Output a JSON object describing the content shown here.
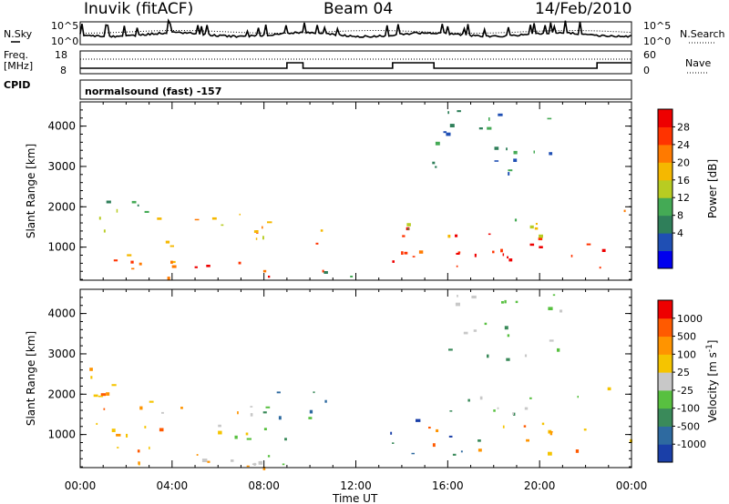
{
  "header": {
    "station": "Inuvik (fitACF)",
    "beam": "Beam 04",
    "date": "14/Feb/2010"
  },
  "status_panels": {
    "nsky_label": "N.Sky",
    "nsearch_label": "N.Search",
    "noise_ticks": [
      "10^5",
      "10^0"
    ],
    "freq_label_1": "Freq.",
    "freq_label_2": "[MHz]",
    "freq_ticks": [
      "18",
      "8"
    ],
    "nave_label": "Nave",
    "nave_ticks": [
      "60",
      "0"
    ],
    "cpid_label": "CPID",
    "cpid_text": "normalsound (fast) -157"
  },
  "chart_data": [
    {
      "type": "heatmap",
      "name": "power",
      "ylabel": "Slant Range [km]",
      "yticks": [
        "4000",
        "3000",
        "2000",
        "1000"
      ],
      "ylim": [
        180,
        4600
      ],
      "xlim": [
        0,
        24
      ],
      "colorbar_label": "Power [dB]",
      "colorbar_ticks": [
        "28",
        "24",
        "20",
        "16",
        "12",
        "8",
        "4"
      ],
      "colorbar_colors": [
        "#0000ee",
        "#1f4fb4",
        "#2f7f5a",
        "#44aa55",
        "#b8cc22",
        "#f5b800",
        "#ff7a00",
        "#ff3300",
        "#ee0000"
      ],
      "regions": [
        {
          "x0": 0.0,
          "x1": 4.0,
          "y0": 300,
          "y1": 1200,
          "v": 6
        },
        {
          "x0": 0.2,
          "x1": 3.5,
          "y0": 1400,
          "y1": 2400,
          "v": 3
        },
        {
          "x0": 2.5,
          "x1": 8.5,
          "y0": 250,
          "y1": 700,
          "v": 7
        },
        {
          "x0": 3.0,
          "x1": 8.5,
          "y0": 1100,
          "y1": 1900,
          "v": 5
        },
        {
          "x0": 7.5,
          "x1": 10.5,
          "y0": 850,
          "y1": 1650,
          "v": 6
        },
        {
          "x0": 8.0,
          "x1": 11.0,
          "y0": 200,
          "y1": 450,
          "v": 7
        },
        {
          "x0": 10.5,
          "x1": 13.5,
          "y0": 250,
          "y1": 550,
          "v": 2
        },
        {
          "x0": 13.2,
          "x1": 18.0,
          "y0": 500,
          "y1": 1500,
          "v": 7
        },
        {
          "x0": 16.0,
          "x1": 24.0,
          "y0": 450,
          "y1": 1300,
          "v": 8
        },
        {
          "x0": 14.0,
          "x1": 20.0,
          "y0": 1300,
          "y1": 1900,
          "v": 4
        },
        {
          "x0": 22.8,
          "x1": 23.9,
          "y0": 1900,
          "y1": 2500,
          "v": 6
        },
        {
          "x0": 15.0,
          "x1": 21.0,
          "y0": 2800,
          "y1": 4500,
          "v": 2
        }
      ]
    },
    {
      "type": "heatmap",
      "name": "velocity",
      "ylabel": "Slant Range [km]",
      "yticks": [
        "4000",
        "3000",
        "2000",
        "1000"
      ],
      "ylim": [
        180,
        4600
      ],
      "xlim": [
        0,
        24
      ],
      "xticks": [
        "00:00",
        "04:00",
        "08:00",
        "12:00",
        "16:00",
        "20:00",
        "00:00"
      ],
      "xlabel": "Time UT",
      "colorbar_label": "Velocity [m s",
      "colorbar_label_sup": "-1",
      "colorbar_label_end": "]",
      "colorbar_ticks": [
        "1000",
        "500",
        "100",
        "25",
        "-25",
        "-100",
        "-500",
        "-1000"
      ],
      "colorbar_colors": [
        "#1a3fa8",
        "#2e6aa0",
        "#3a8a5a",
        "#58c040",
        "#c8c8c8",
        "#f5c400",
        "#ff9400",
        "#ff5a00",
        "#ee0000"
      ],
      "regions": [
        {
          "x0": 0.0,
          "x1": 3.5,
          "y0": 300,
          "y1": 2800,
          "v": 6
        },
        {
          "x0": 3.0,
          "x1": 7.5,
          "y0": 1000,
          "y1": 1900,
          "v": 5
        },
        {
          "x0": 6.5,
          "x1": 11.0,
          "y0": 800,
          "y1": 2100,
          "v": 2
        },
        {
          "x0": 2.0,
          "x1": 12.0,
          "y0": 200,
          "y1": 600,
          "v": 5
        },
        {
          "x0": 5.0,
          "x1": 10.5,
          "y0": 250,
          "y1": 500,
          "v": 4
        },
        {
          "x0": 13.3,
          "x1": 17.5,
          "y0": 500,
          "y1": 1400,
          "v": 1
        },
        {
          "x0": 15.0,
          "x1": 24.0,
          "y0": 500,
          "y1": 1300,
          "v": 6
        },
        {
          "x0": 16.0,
          "x1": 22.5,
          "y0": 1300,
          "y1": 2000,
          "v": 3
        },
        {
          "x0": 22.8,
          "x1": 23.9,
          "y0": 1800,
          "y1": 2200,
          "v": 4
        },
        {
          "x0": 15.5,
          "x1": 21.0,
          "y0": 2800,
          "y1": 4500,
          "v": 3
        }
      ]
    }
  ]
}
